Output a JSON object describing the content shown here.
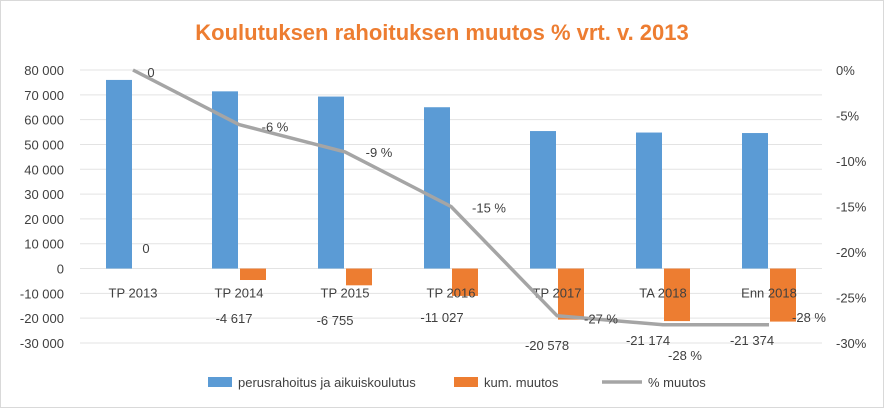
{
  "chart_data": {
    "type": "bar",
    "title": "Koulutuksen rahoituksen muutos % vrt. v. 2013",
    "categories": [
      "TP 2013",
      "TP 2014",
      "TP 2015",
      "TP 2016",
      "TP 2017",
      "TA 2018",
      "Enn 2018"
    ],
    "ylim": [
      -30000,
      80000
    ],
    "y_ticks": [
      80000,
      70000,
      60000,
      50000,
      40000,
      30000,
      20000,
      10000,
      0,
      -10000,
      -20000,
      -30000
    ],
    "y_tick_labels": [
      "80 000",
      "70 000",
      "60 000",
      "50 000",
      "40 000",
      "30 000",
      "20 000",
      "10 000",
      "0",
      "-10 000",
      "-20 000",
      "-30 000"
    ],
    "y2lim": [
      -30,
      0
    ],
    "y2_ticks": [
      0,
      -5,
      -10,
      -15,
      -20,
      -25,
      -30
    ],
    "y2_tick_labels": [
      "0%",
      "-5%",
      "-10%",
      "-15%",
      "-20%",
      "-25%",
      "-30%"
    ],
    "grid": true,
    "legend_position": "bottom",
    "series": [
      {
        "name": "perusrahoitus ja aikuiskoulutus",
        "type": "bar",
        "color": "#5b9bd5",
        "values": [
          76000,
          71400,
          69300,
          65000,
          55400,
          54800,
          54600
        ]
      },
      {
        "name": "kum. muutos",
        "type": "bar",
        "color": "#ed7d31",
        "values": [
          0,
          -4617,
          -6755,
          -11027,
          -20578,
          -21174,
          -21374
        ],
        "labels": [
          "0",
          "-4 617",
          "-6 755",
          "-11 027",
          "-20 578",
          "-21 174",
          "-21 374"
        ]
      },
      {
        "name": "% muutos",
        "type": "line",
        "axis": "secondary",
        "color": "#a5a5a5",
        "values": [
          0,
          -6,
          -9,
          -15,
          -27,
          -28,
          -28
        ],
        "labels": [
          "0",
          "-6 %",
          "-9 %",
          "-15 %",
          "-27 %",
          "-28 %",
          "-28 %"
        ]
      }
    ]
  }
}
